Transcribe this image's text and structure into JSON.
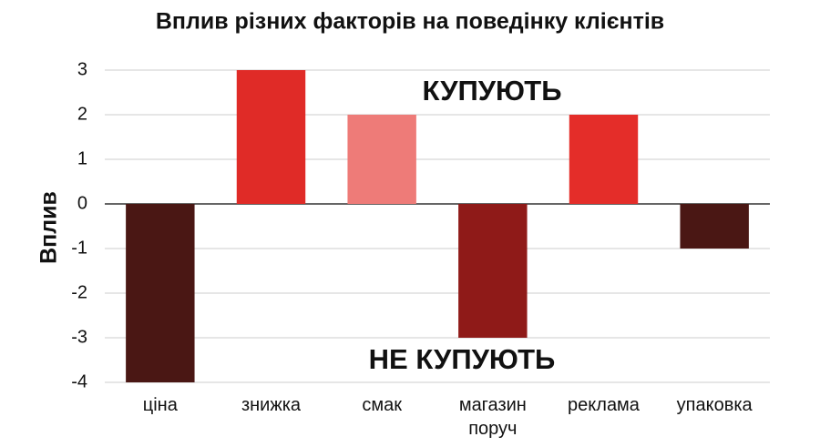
{
  "chart_data": {
    "type": "bar",
    "title": "Вплив різних факторів на поведінку клієнтів",
    "y_label": "Вплив",
    "annotations": [
      "КУПУЮТЬ",
      "НЕ КУПУЮТЬ"
    ],
    "categories": [
      "ціна",
      "знижка",
      "смак",
      "магазин поруч",
      "реклама",
      "упаковка"
    ],
    "values": [
      -4,
      3,
      2,
      -3,
      2,
      -1
    ],
    "colors": [
      "#4a1714",
      "#e02b27",
      "#ee7b78",
      "#8f1a18",
      "#e42d29",
      "#4a1714"
    ],
    "ylim": [
      -4,
      3
    ],
    "yticks": [
      -4,
      -3,
      -2,
      -1,
      0,
      1,
      2,
      3
    ],
    "grid": true
  }
}
